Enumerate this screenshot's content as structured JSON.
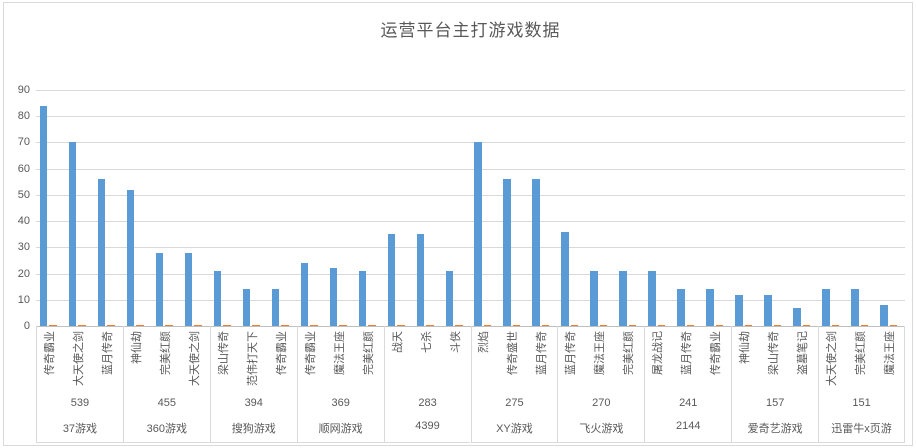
{
  "title": "运营平台主打游戏数据",
  "chart_data": {
    "type": "bar",
    "title": "运营平台主打游戏数据",
    "xlabel": "",
    "ylabel": "",
    "ylim": [
      0,
      90
    ],
    "ytick_step": 10,
    "ytick_labels": [
      "0",
      "10",
      "20",
      "30",
      "40",
      "50",
      "60",
      "70",
      "80",
      "90"
    ],
    "grid": true,
    "legend": "none",
    "series": [
      {
        "name": "series-1-bars",
        "color": "#5b9bd5"
      },
      {
        "name": "series-2-markers",
        "color": "#ed7d31",
        "constant_value": 0.5
      }
    ],
    "groups": [
      {
        "platform": "37游戏",
        "total": "539",
        "games": [
          {
            "label": "传奇霸业",
            "value": 84
          },
          {
            "label": "大天使之剑",
            "value": 70
          },
          {
            "label": "蓝月传奇",
            "value": 56
          }
        ]
      },
      {
        "platform": "360游戏",
        "total": "455",
        "games": [
          {
            "label": "神仙劫",
            "value": 52
          },
          {
            "label": "完美红颜",
            "value": 28
          },
          {
            "label": "大天使之剑",
            "value": 28
          }
        ]
      },
      {
        "platform": "搜狗游戏",
        "total": "394",
        "games": [
          {
            "label": "梁山传奇",
            "value": 21
          },
          {
            "label": "范伟打天下",
            "value": 14
          },
          {
            "label": "传奇霸业",
            "value": 14
          }
        ]
      },
      {
        "platform": "顺网游戏",
        "total": "369",
        "games": [
          {
            "label": "传奇霸业",
            "value": 24
          },
          {
            "label": "魔法王座",
            "value": 22
          },
          {
            "label": "完美红颜",
            "value": 21
          }
        ]
      },
      {
        "platform": "4399",
        "total": "283",
        "games": [
          {
            "label": "战天",
            "value": 35
          },
          {
            "label": "七杀",
            "value": 35
          },
          {
            "label": "斗侠",
            "value": 21
          }
        ]
      },
      {
        "platform": "XY游戏",
        "total": "275",
        "games": [
          {
            "label": "烈焰",
            "value": 70
          },
          {
            "label": "传奇盛世",
            "value": 56
          },
          {
            "label": "蓝月传奇",
            "value": 56
          }
        ]
      },
      {
        "platform": "飞火游戏",
        "total": "270",
        "games": [
          {
            "label": "蓝月传奇",
            "value": 36
          },
          {
            "label": "魔法王座",
            "value": 21
          },
          {
            "label": "完美红颜",
            "value": 21
          }
        ]
      },
      {
        "platform": "2144",
        "total": "241",
        "games": [
          {
            "label": "屠龙战记",
            "value": 21
          },
          {
            "label": "蓝月传奇",
            "value": 14
          },
          {
            "label": "传奇霸业",
            "value": 14
          }
        ]
      },
      {
        "platform": "爱奇艺游戏",
        "total": "157",
        "games": [
          {
            "label": "神仙劫",
            "value": 12
          },
          {
            "label": "梁山传奇",
            "value": 12
          },
          {
            "label": "盗墓笔记",
            "value": 7
          }
        ]
      },
      {
        "platform": "迅雷牛x页游",
        "total": "151",
        "games": [
          {
            "label": "大天使之剑",
            "value": 14
          },
          {
            "label": "完美红颜",
            "value": 14
          },
          {
            "label": "魔法王座",
            "value": 8
          }
        ]
      }
    ],
    "colors": {
      "bar": "#5b9bd5",
      "marker": "#ed7d31",
      "gridline": "#d9d9d9",
      "axis_line": "#bfbfbf",
      "text": "#595959"
    }
  }
}
